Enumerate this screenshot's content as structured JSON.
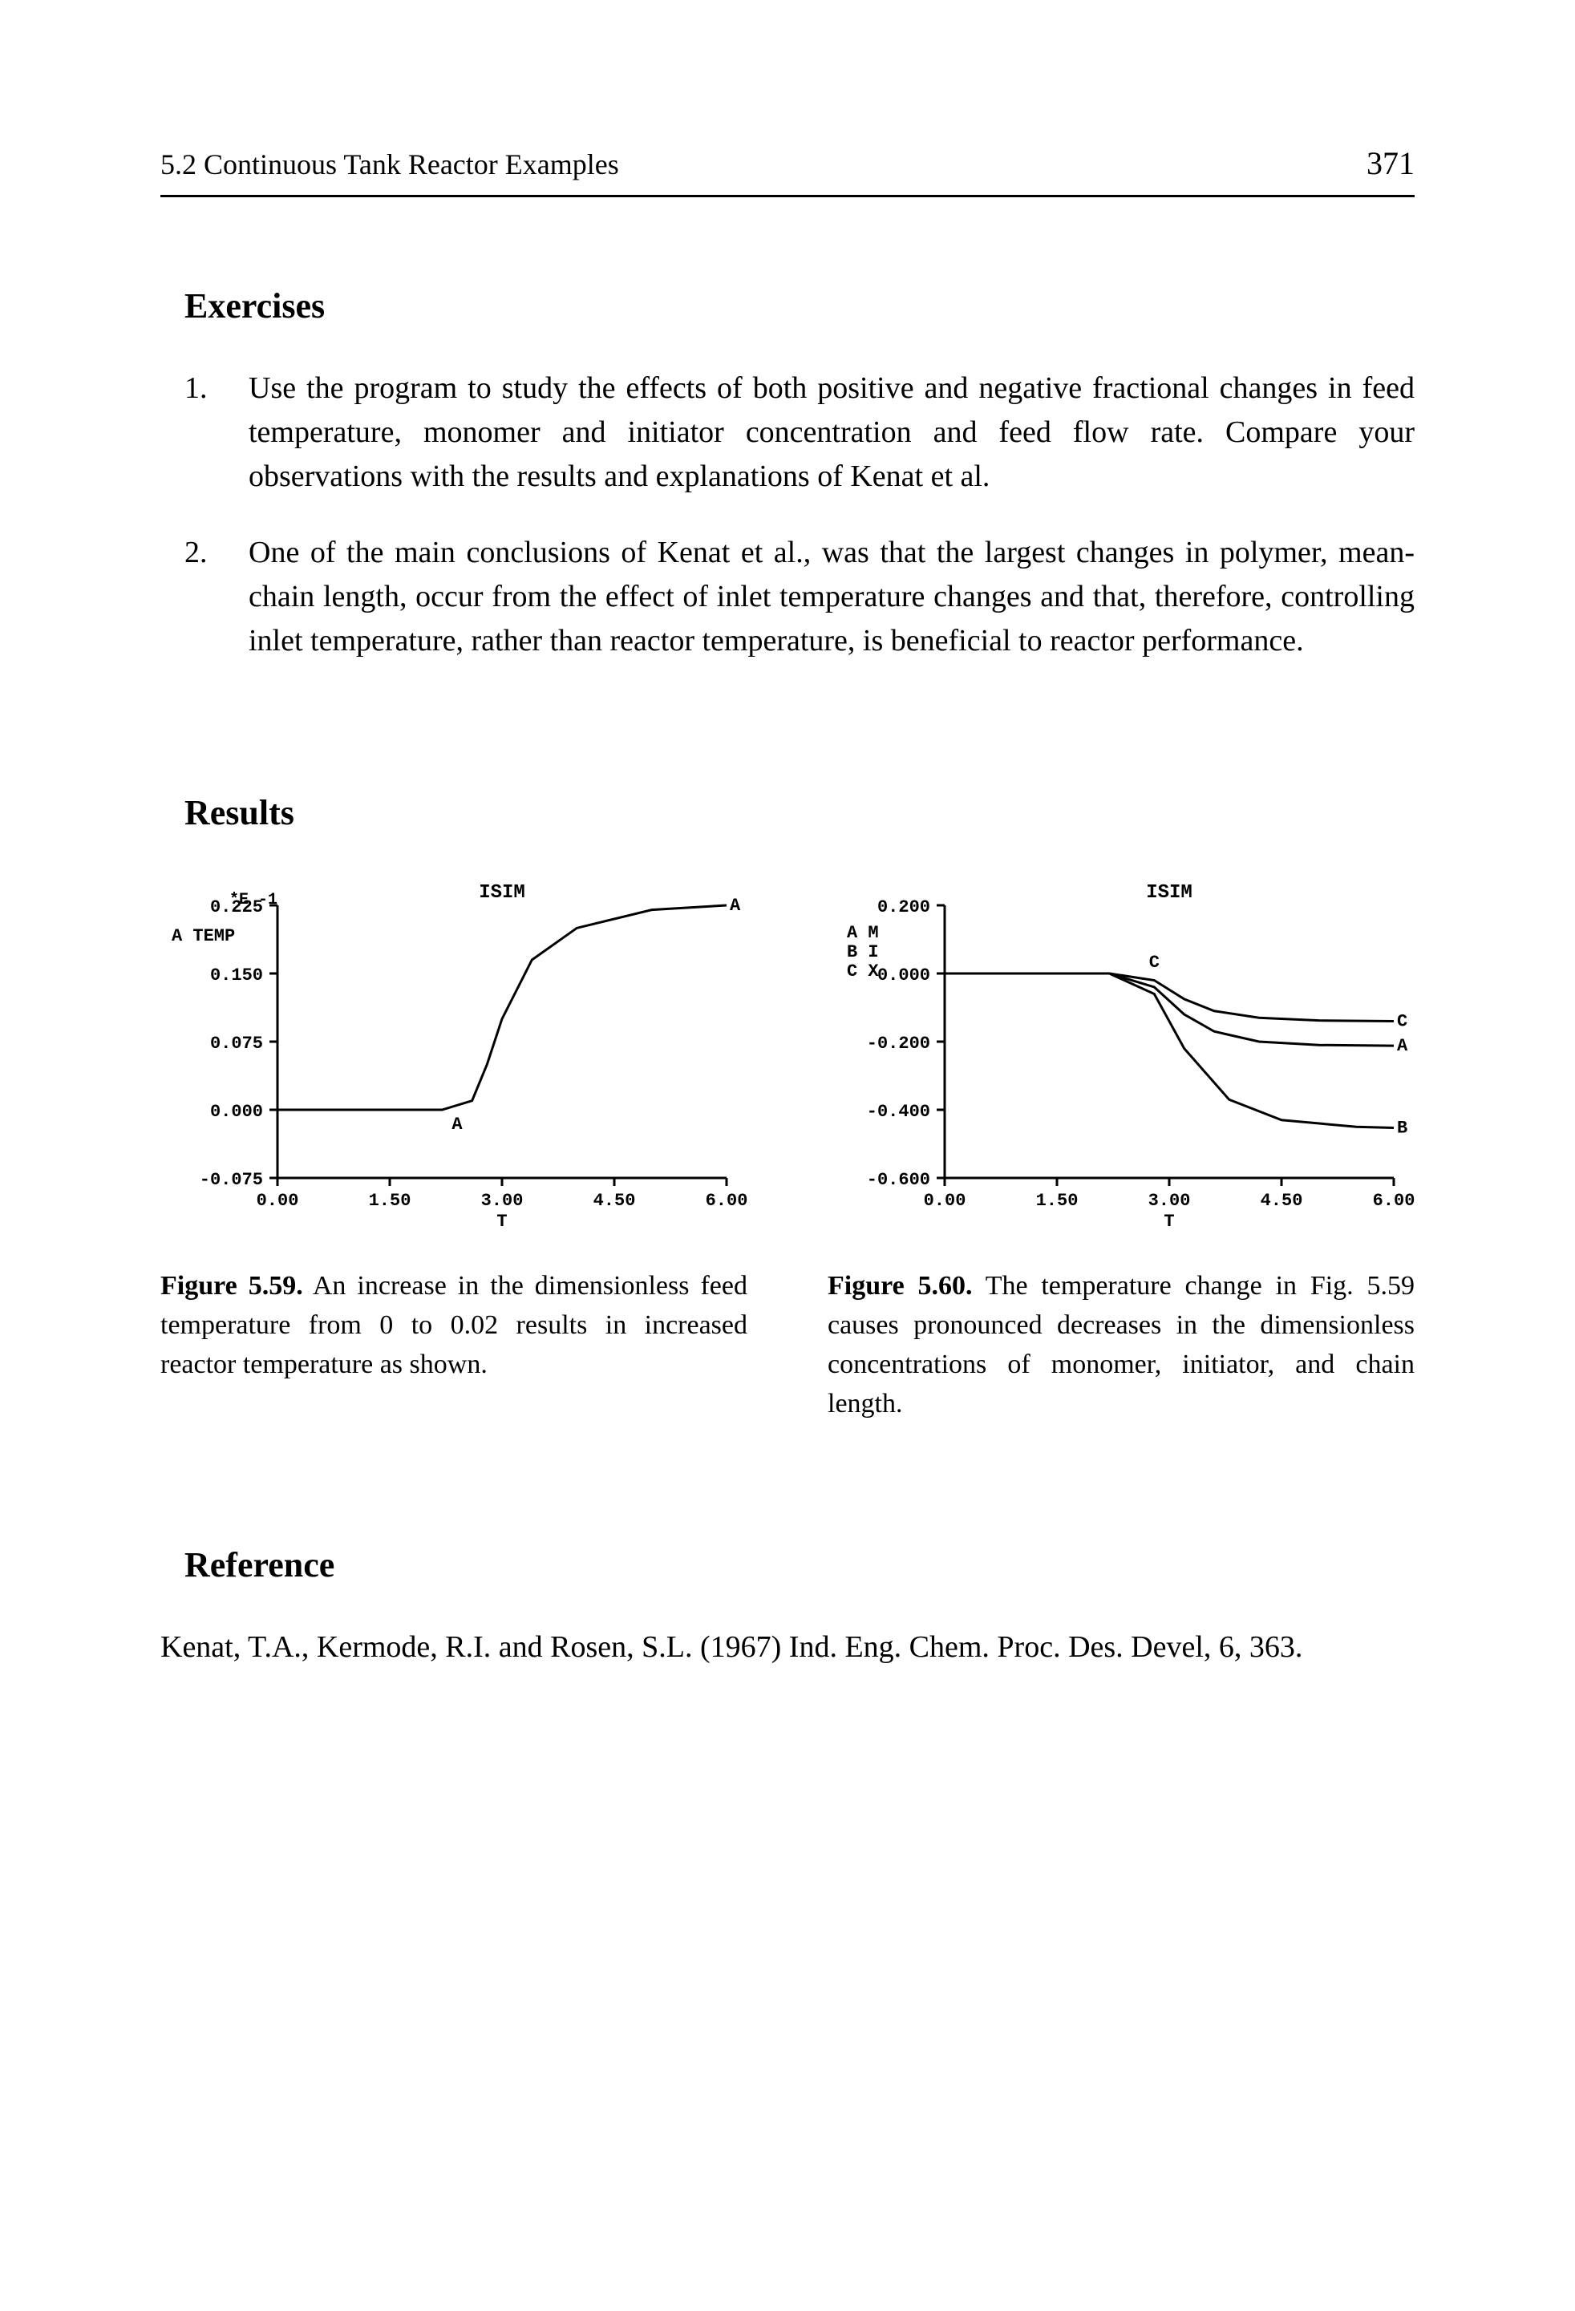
{
  "header": {
    "section": "5.2 Continuous Tank Reactor Examples",
    "page": "371"
  },
  "exercises": {
    "title": "Exercises",
    "items": [
      {
        "num": "1.",
        "text": "Use the program to study the effects of both positive and negative fractional changes in feed temperature, monomer and initiator concentration and feed flow rate.  Compare your observations with the results and explanations of Kenat et al."
      },
      {
        "num": "2.",
        "text": "One of the main conclusions of Kenat et al., was that the largest changes in polymer, mean-chain length, occur from the effect of inlet temperature changes and that, therefore, controlling inlet temperature, rather than reactor temperature, is beneficial to reactor performance."
      }
    ]
  },
  "results": {
    "title": "Results"
  },
  "fig59": {
    "type": "line",
    "title": "ISIM",
    "axis_exp": "*E -1",
    "ylegend": "TEMP",
    "yticks": [
      "0.225",
      "0.150",
      "0.075",
      "0.000",
      "-0.075"
    ],
    "xticks": [
      "0.00",
      "1.50",
      "3.00",
      "4.50",
      "6.00"
    ],
    "xlabel": "T",
    "series_label": "A",
    "points_x": [
      0.0,
      1.5,
      2.2,
      2.6,
      2.8,
      3.0,
      3.4,
      4.0,
      5.0,
      6.0
    ],
    "points_y": [
      0.0,
      0.0,
      0.0,
      0.01,
      0.05,
      0.1,
      0.165,
      0.2,
      0.22,
      0.225
    ],
    "ylim": [
      -0.075,
      0.225
    ],
    "xlim": [
      0.0,
      6.0
    ],
    "caption_bold": "Figure  5.59.",
    "caption_rest": "   An increase in the dimensionless feed temperature from 0 to 0.02 results in increased reactor temperature as shown."
  },
  "fig60": {
    "type": "line",
    "title": "ISIM",
    "legend_a": "A  M",
    "legend_b": "B  I",
    "legend_c": "C  X",
    "yticks": [
      "0.200",
      "0.000",
      "-0.200",
      "-0.400",
      "-0.600"
    ],
    "xticks": [
      "0.00",
      "1.50",
      "3.00",
      "4.50",
      "6.00"
    ],
    "xlabel": "T",
    "ylim": [
      -0.6,
      0.2
    ],
    "xlim": [
      0.0,
      6.0
    ],
    "seriesA": {
      "label": "A",
      "x": [
        0.0,
        2.2,
        2.8,
        3.2,
        3.6,
        4.2,
        5.0,
        6.0
      ],
      "y": [
        0.0,
        0.0,
        -0.04,
        -0.12,
        -0.17,
        -0.2,
        -0.21,
        -0.212
      ]
    },
    "seriesB": {
      "label": "B",
      "x": [
        0.0,
        2.2,
        2.8,
        3.2,
        3.8,
        4.5,
        5.5,
        6.0
      ],
      "y": [
        0.0,
        0.0,
        -0.06,
        -0.22,
        -0.37,
        -0.43,
        -0.45,
        -0.453
      ]
    },
    "seriesC": {
      "label": "C",
      "x": [
        0.0,
        2.2,
        2.8,
        3.2,
        3.6,
        4.2,
        5.0,
        6.0
      ],
      "y": [
        0.0,
        0.0,
        -0.02,
        -0.075,
        -0.11,
        -0.13,
        -0.138,
        -0.14
      ]
    },
    "c_marker_x": 2.8,
    "caption_bold": "Figure 5.60.",
    "caption_rest": "   The temperature change in Fig. 5.59 causes pronounced decreases in the dimensionless concentrations of monomer, initiator, and chain length."
  },
  "reference": {
    "title": "Reference",
    "text": "Kenat, T.A., Kermode, R.I. and Rosen, S.L. (1967) Ind. Eng. Chem. Proc. Des. Devel,  6, 363."
  },
  "colors": {
    "fg": "#000000",
    "bg": "#ffffff"
  }
}
